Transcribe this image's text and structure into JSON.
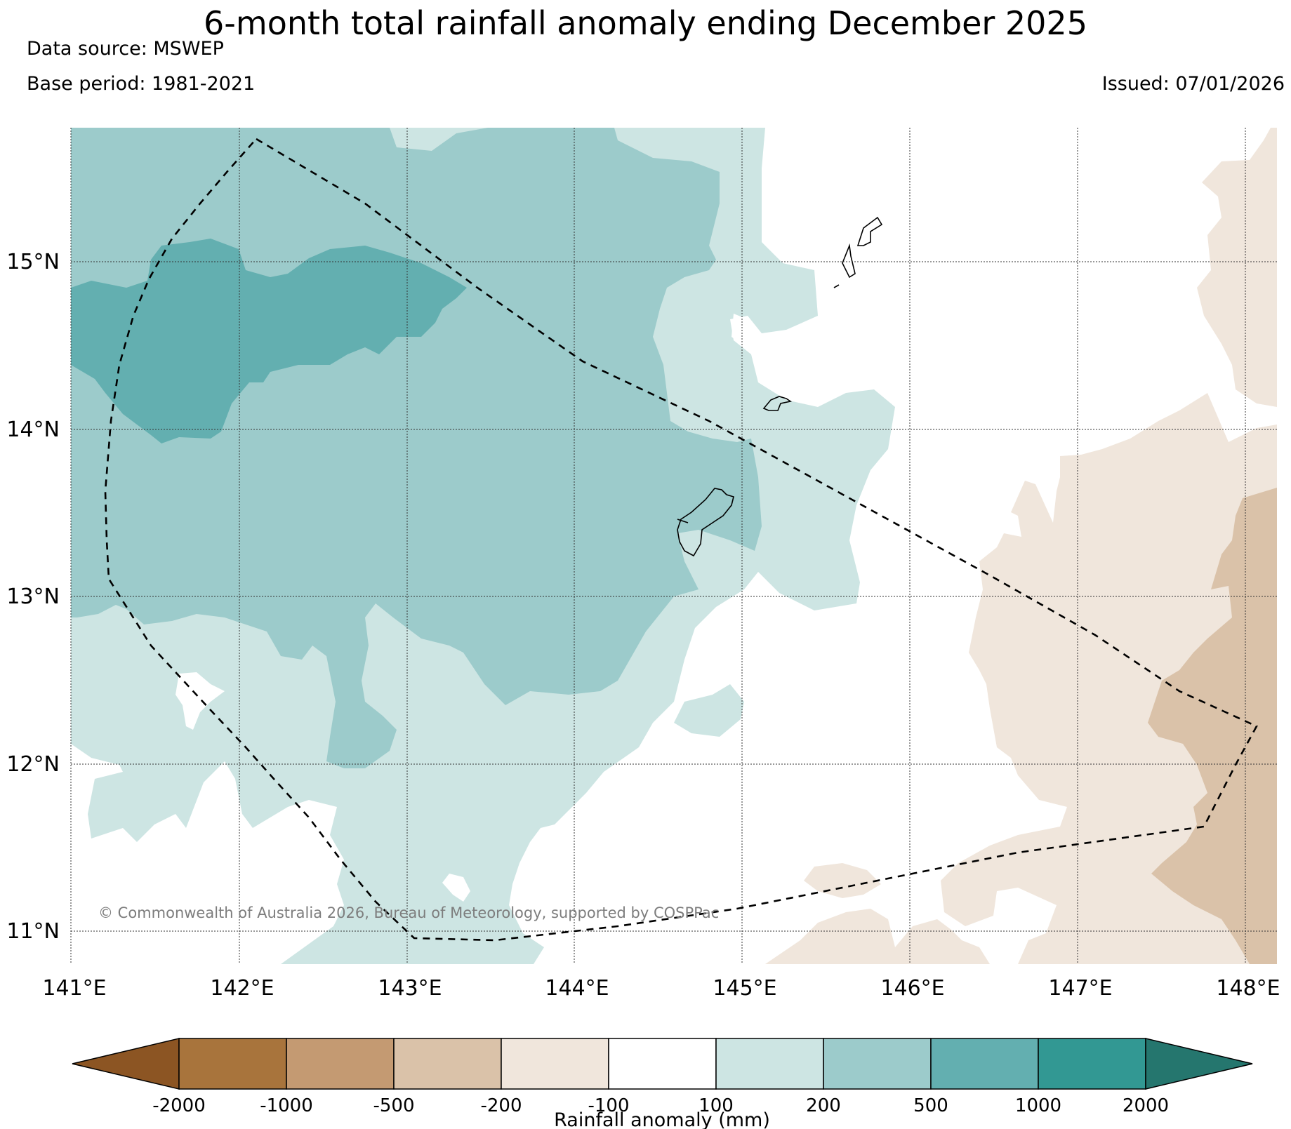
{
  "header": {
    "title": "6-month total rainfall anomaly ending December 2025",
    "data_source": "Data source: MSWEP",
    "base_period": "Base period: 1981-2021",
    "issued": "Issued: 07/01/2026"
  },
  "map": {
    "lon_labels": [
      "141°E",
      "142°E",
      "143°E",
      "144°E",
      "145°E",
      "146°E",
      "147°E",
      "148°E"
    ],
    "lat_labels": [
      "15°N",
      "14°N",
      "13°N",
      "12°N",
      "11°N"
    ],
    "extent": {
      "lon_min": 141.0,
      "lon_max": 148.2,
      "lat_min": 10.8,
      "lat_max": 15.8
    },
    "copyright": "© Commonwealth of Australia 2026, Bureau of Meteorology, supported by COSPPac"
  },
  "colorbar": {
    "title": "Rainfall anomaly (mm)",
    "ticks": [
      "-2000",
      "-1000",
      "-500",
      "-200",
      "-100",
      "100",
      "200",
      "500",
      "1000",
      "2000"
    ],
    "extend_low_color": "#8c5523",
    "extend_high_color": "#25766e",
    "bins": [
      {
        "range": "-2000 to -1000",
        "color": "#a8743c"
      },
      {
        "range": "-1000 to -500",
        "color": "#c49a72"
      },
      {
        "range": "-500 to -200",
        "color": "#dac2a9"
      },
      {
        "range": "-200 to -100",
        "color": "#f0e6dc"
      },
      {
        "range": "-100 to 100",
        "color": "#ffffff"
      },
      {
        "range": "100 to 200",
        "color": "#cde5e3"
      },
      {
        "range": "200 to 500",
        "color": "#9ccbcb"
      },
      {
        "range": "500 to 1000",
        "color": "#63afb0"
      },
      {
        "range": "1000 to 2000",
        "color": "#329893"
      }
    ]
  }
}
